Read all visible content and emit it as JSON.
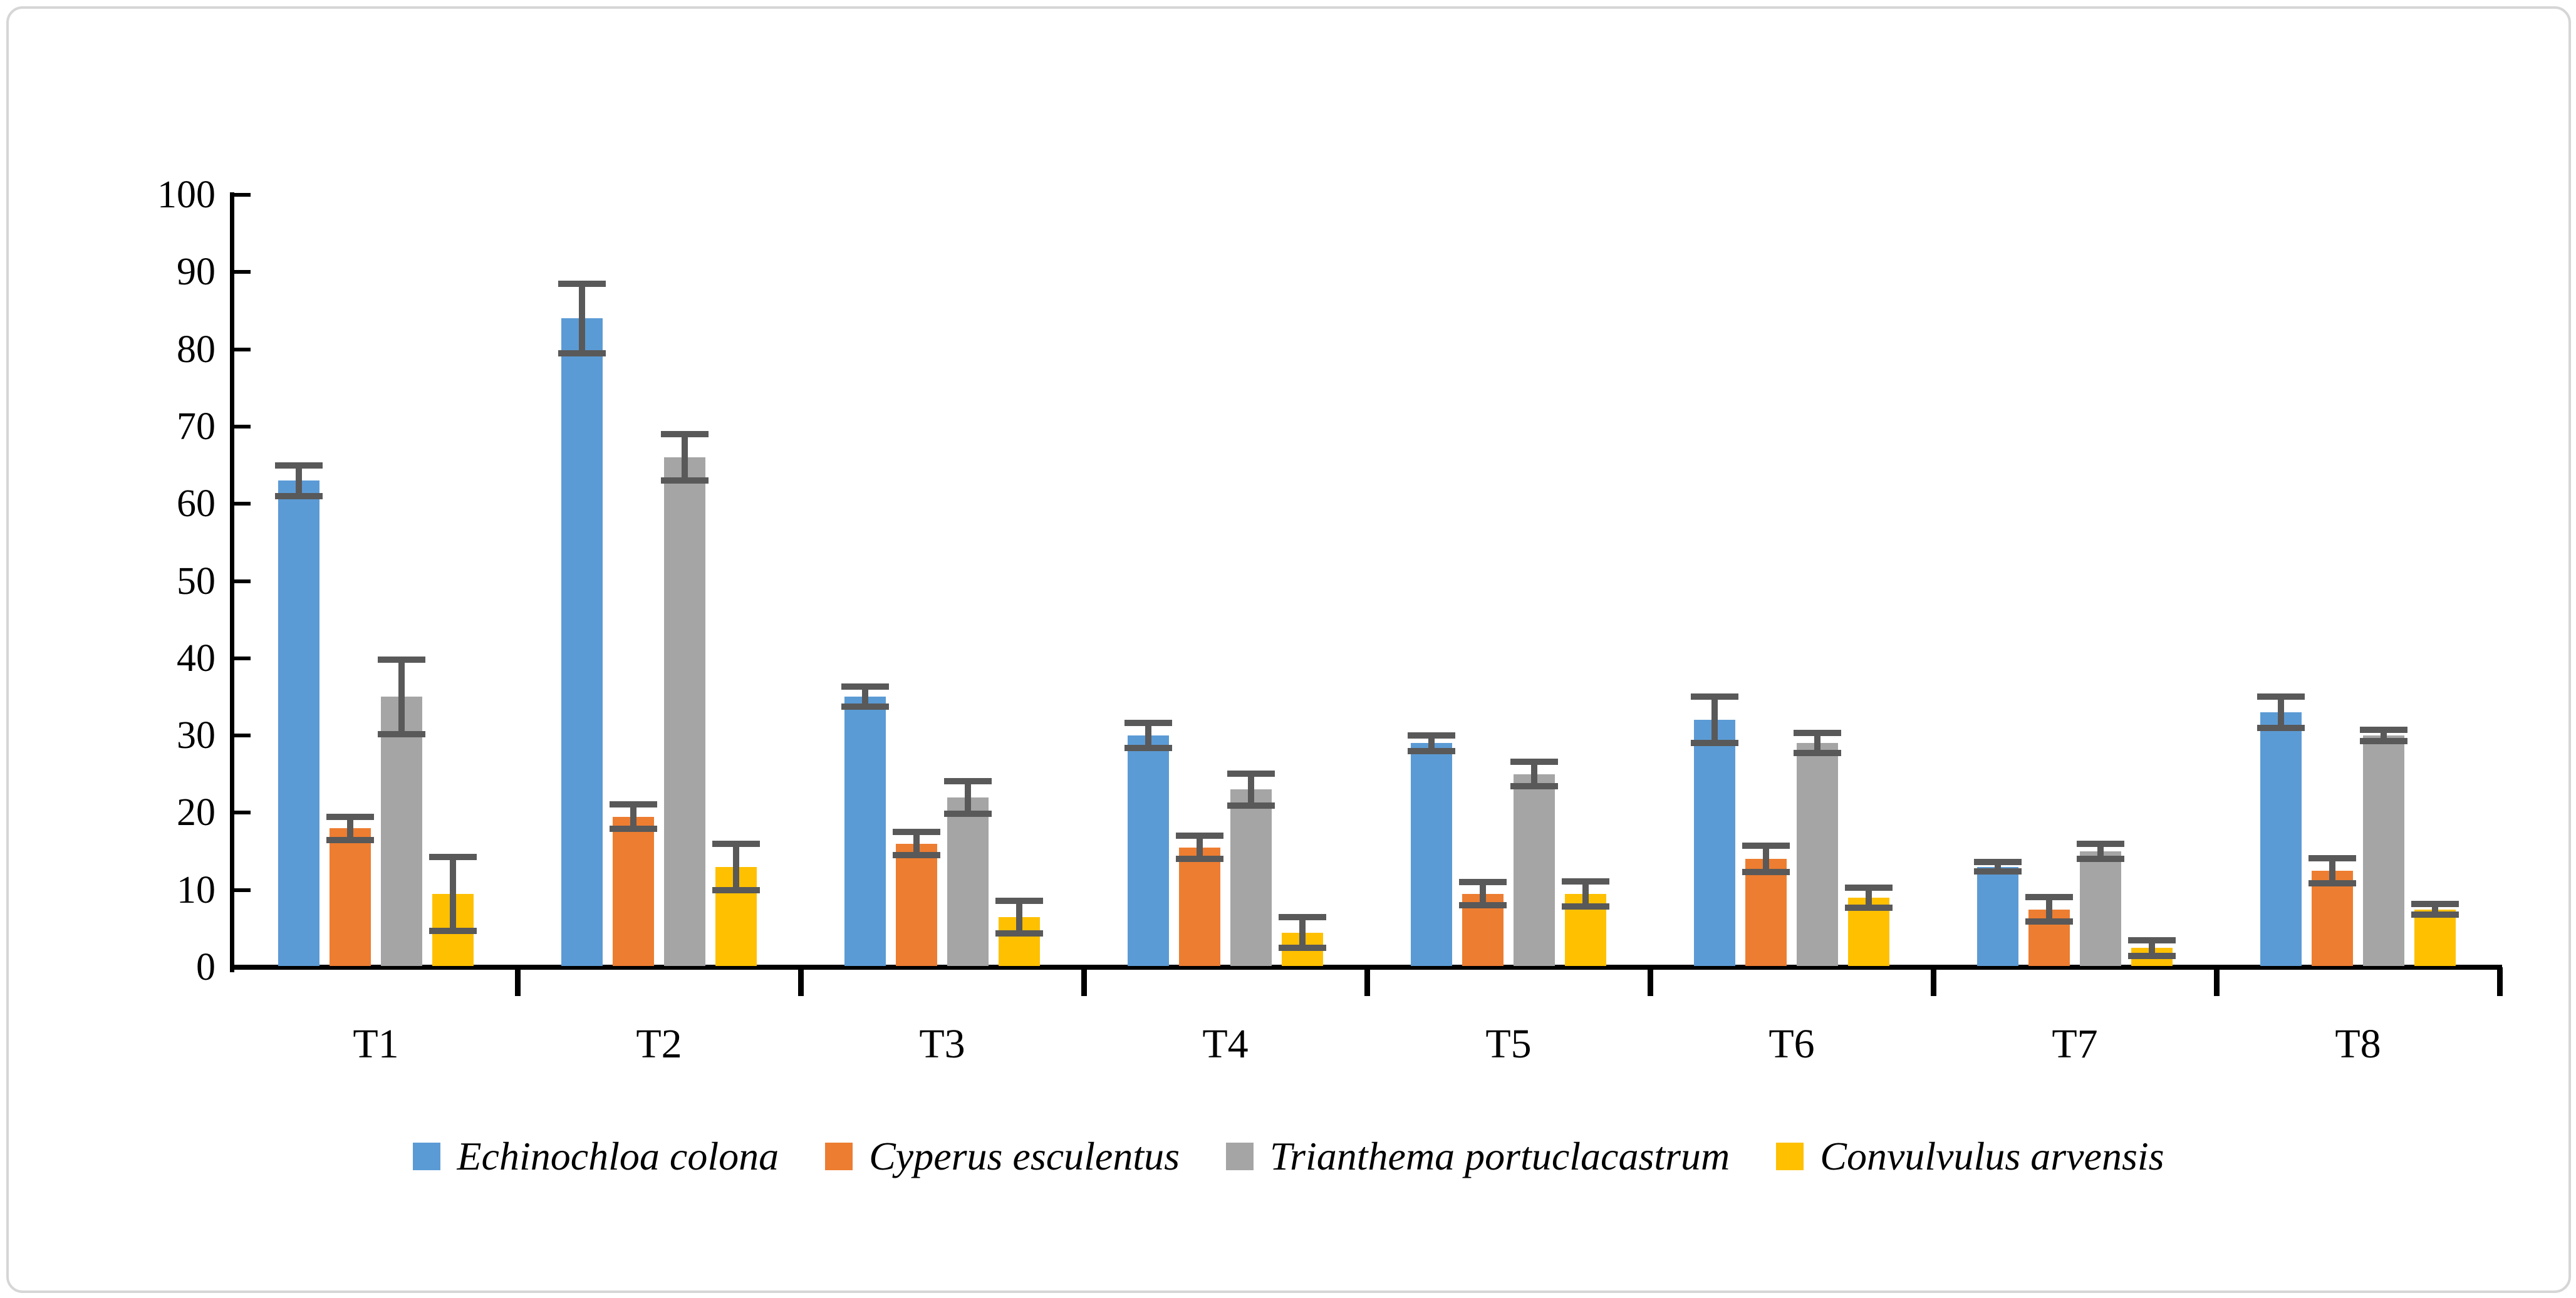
{
  "chart_data": {
    "type": "bar",
    "title": "",
    "xlabel": "",
    "ylabel": "",
    "ylim": [
      0,
      100
    ],
    "ytick_step": 10,
    "ytick_labels": [
      "0",
      "10",
      "20",
      "30",
      "40",
      "50",
      "60",
      "70",
      "80",
      "90",
      "100"
    ],
    "grid": false,
    "legend_position": "bottom",
    "error_bars": true,
    "categories": [
      "T1",
      "T2",
      "T3",
      "T4",
      "T5",
      "T6",
      "T7",
      "T8"
    ],
    "series": [
      {
        "name": "Echinochloa colona",
        "color": "#5B9BD5",
        "values": [
          63,
          84,
          35,
          30,
          29,
          32,
          13,
          33
        ],
        "errors": [
          2,
          4.5,
          1.3,
          1.6,
          1,
          3,
          0.6,
          2
        ]
      },
      {
        "name": "Cyperus esculentus",
        "color": "#ED7D31",
        "values": [
          18,
          19.5,
          16,
          15.5,
          9.5,
          14,
          7.5,
          12.5
        ],
        "errors": [
          1.5,
          1.6,
          1.5,
          1.5,
          1.5,
          1.7,
          1.6,
          1.6
        ]
      },
      {
        "name": "Trianthema portuclacastrum",
        "color": "#A5A5A5",
        "values": [
          35,
          66,
          22,
          23,
          25,
          29,
          15,
          30
        ],
        "errors": [
          4.8,
          3,
          2.1,
          2.1,
          1.6,
          1.3,
          1,
          0.7
        ]
      },
      {
        "name": "Convulvulus arvensis",
        "color": "#FFC000",
        "values": [
          9.5,
          13,
          6.5,
          4.5,
          9.5,
          9,
          2.5,
          7.5
        ],
        "errors": [
          4.8,
          3,
          2.1,
          2,
          1.6,
          1.3,
          1,
          0.7
        ]
      }
    ],
    "error_bar_color": "#595959",
    "axis_color": "#000000",
    "frame_border_color": "#d6d6d6"
  }
}
